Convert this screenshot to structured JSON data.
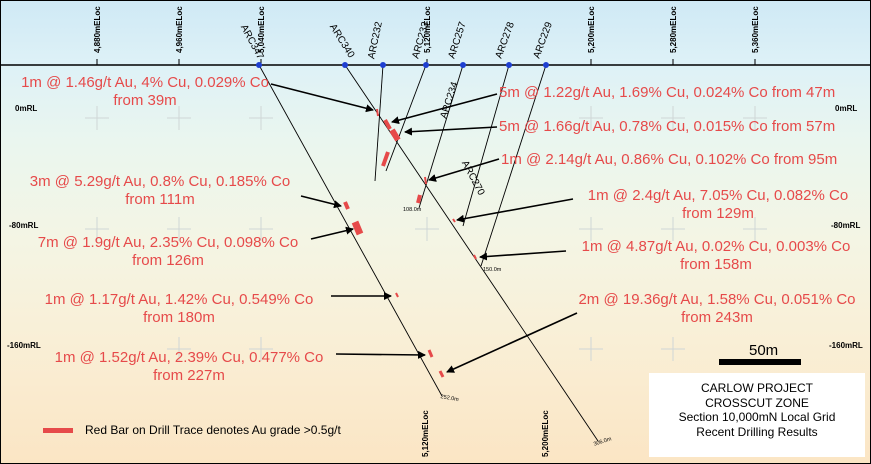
{
  "eastings": [
    "4,880mELoc",
    "4,960mELoc",
    "5,040mELoc",
    "5,120mELoc",
    "5,200mELoc",
    "5,280mELoc",
    "5,360mELoc"
  ],
  "bottom_eastings": [
    "5,120mELoc",
    "5,200mELoc"
  ],
  "rl_levels": [
    "0mRL",
    "-80mRL",
    "-160mRL"
  ],
  "drill_holes": [
    "ARC347",
    "ARC340",
    "ARC232",
    "ARC233",
    "ARC257",
    "ARC278",
    "ARC229",
    "ARC234",
    "ARC270"
  ],
  "end_depths": [
    "108.0m",
    "150.0m",
    "252.0m",
    "306.0m"
  ],
  "intercepts": [
    {
      "line1": "1m @ 1.46g/t Au, 4% Cu, 0.029% Co",
      "line2": "from 39m"
    },
    {
      "line1": "5m @ 1.22g/t Au, 1.69% Cu, 0.024% Co from 47m"
    },
    {
      "line1": "5m @ 1.66g/t Au, 0.78% Cu, 0.015% Co from 57m"
    },
    {
      "line1": "1m @ 2.14g/t Au, 0.86% Cu, 0.102% Co from 95m"
    },
    {
      "line1": "3m @ 5.29g/t Au, 0.8% Cu, 0.185% Co",
      "line2": "from 111m"
    },
    {
      "line1": "1m @ 2.4g/t Au, 7.05% Cu, 0.082% Co",
      "line2": "from 129m"
    },
    {
      "line1": "7m @ 1.9g/t Au, 2.35% Cu, 0.098% Co",
      "line2": "from 126m"
    },
    {
      "line1": "1m @ 4.87g/t Au, 0.02% Cu, 0.003% Co",
      "line2": "from 158m"
    },
    {
      "line1": "1m @ 1.17g/t Au, 1.42% Cu, 0.549% Co",
      "line2": "from 180m"
    },
    {
      "line1": "2m @ 19.36g/t Au, 1.58% Cu, 0.051% Co",
      "line2": "from 243m"
    },
    {
      "line1": "1m @ 1.52g/t Au, 2.39% Cu, 0.477% Co",
      "line2": "from 227m"
    }
  ],
  "legend": {
    "text": "Red Bar on Drill Trace denotes Au grade >0.5g/t",
    "color": "#e64a4a"
  },
  "scale": {
    "label": "50m"
  },
  "title_block": {
    "line1": "CARLOW PROJECT",
    "line2": "CROSSCUT ZONE",
    "line3": "Section 10,000mN Local Grid",
    "line4": "Recent Drilling Results"
  },
  "colors": {
    "annotation": "#e64a4a",
    "collar": "#1f3fd1",
    "trace": "#000000"
  }
}
